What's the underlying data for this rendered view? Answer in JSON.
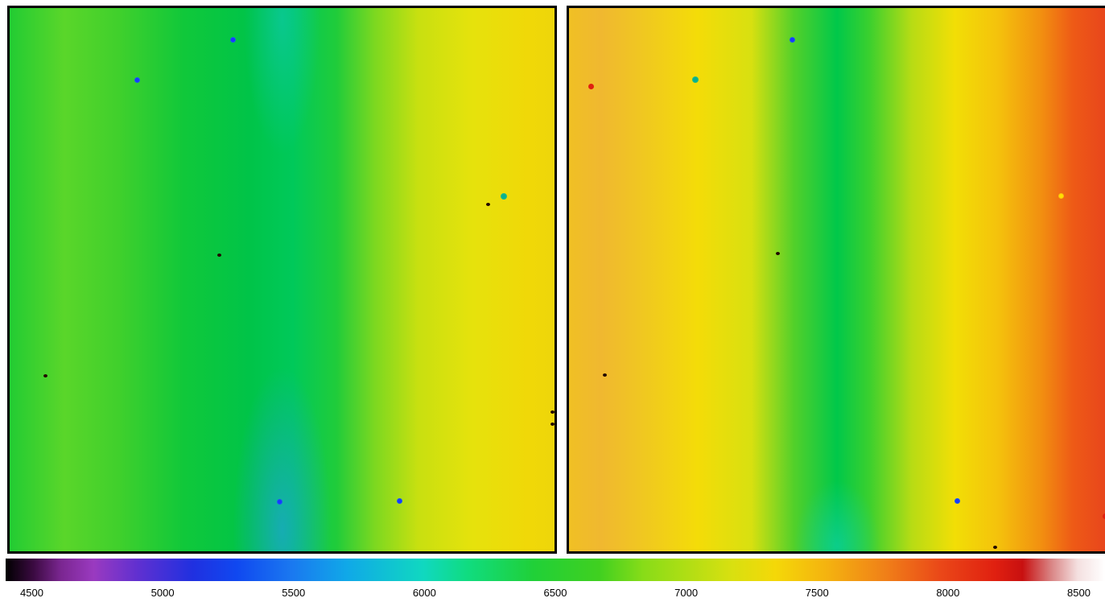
{
  "colorbar": {
    "tick_labels": [
      "4500",
      "5000",
      "5500",
      "6000",
      "6500",
      "7000",
      "7500",
      "8000",
      "8500"
    ],
    "range": [
      4400,
      8600
    ],
    "colors": [
      "#000000",
      "#9a3ac0",
      "#1048f0",
      "#10d8c0",
      "#20d038",
      "#f4d808",
      "#f08018",
      "#e02010",
      "#ffffff"
    ]
  }
}
